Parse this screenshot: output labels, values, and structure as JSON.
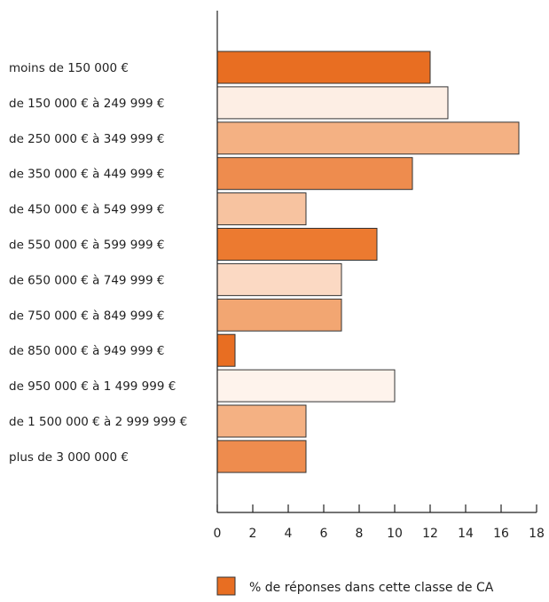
{
  "chart_data": {
    "type": "bar",
    "orientation": "horizontal",
    "categories": [
      "moins de 150 000 €",
      "de 150 000 € à 249 999 €",
      "de 250 000 € à 349 999 €",
      "de 350 000 € à 449 999 €",
      "de 450 000 € à 549 999 €",
      "de 550 000 € à 599 999 €",
      "de 650 000 € à 749 999 €",
      "de 750 000 € à 849 999 €",
      "de 850 000 € à 949 999 €",
      "de 950 000 € à 1 499 999 €",
      "de 1 500 000 € à 2 999 999 €",
      "plus de 3 000 000 €"
    ],
    "series": [
      {
        "name": "% de réponses dans cette classe de CA",
        "values": [
          12,
          13,
          17,
          11,
          5,
          9,
          7,
          7,
          1,
          10,
          5,
          5
        ]
      }
    ],
    "bar_colors": [
      "#E86E22",
      "#FDEEE4",
      "#F4B183",
      "#EE8C4E",
      "#F7C3A0",
      "#EC7A30",
      "#FBD9C3",
      "#F2A672",
      "#E86E22",
      "#FEF3EC",
      "#F4B183",
      "#EE8C4E"
    ],
    "bar_outline": "#333333",
    "legend_color": "#E86E22",
    "xlim": [
      0,
      18
    ],
    "xticks": [
      0,
      2,
      4,
      6,
      8,
      10,
      12,
      14,
      16,
      18
    ],
    "title": "",
    "xlabel": "",
    "ylabel": "",
    "grid": false,
    "legend_position": "bottom"
  }
}
